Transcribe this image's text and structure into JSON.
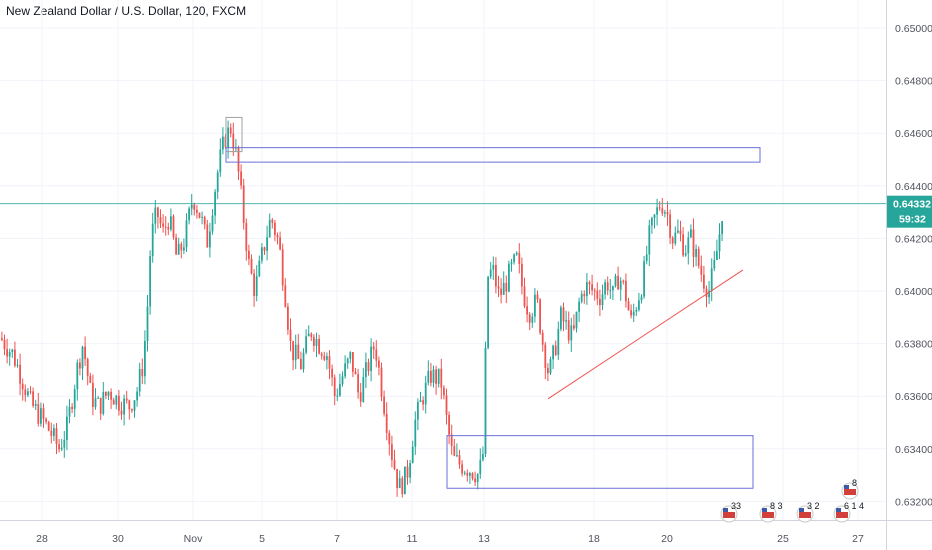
{
  "title": "New Zealand Dollar / U.S. Dollar, 120, FXCM",
  "colors": {
    "up": "#26a69a",
    "down": "#ef5350",
    "current_line": "#26a69a",
    "zone": "#6a6fd8",
    "trendline": "#ef5350",
    "grid": "#f0f3fa",
    "axis_text": "#50535e"
  },
  "chart_data": {
    "type": "candlestick",
    "title": "New Zealand Dollar / U.S. Dollar, 120, FXCM",
    "ylim": [
      0.6305,
      0.651
    ],
    "y_ticks": [
      "0.65000",
      "0.64800",
      "0.64600",
      "0.64400",
      "0.64200",
      "0.64000",
      "0.63800",
      "0.63600",
      "0.63400",
      "0.63200"
    ],
    "x_ticks": [
      "28",
      "30",
      "Nov",
      "5",
      "7",
      "11",
      "13",
      "18",
      "20",
      "25",
      "27"
    ],
    "grid": true,
    "current_price": {
      "value": 0.64332,
      "label": "0.64332",
      "countdown": "59:32"
    },
    "path": [
      [
        0,
        0.6382
      ],
      [
        12,
        0.6376
      ],
      [
        20,
        0.6368
      ],
      [
        30,
        0.6357
      ],
      [
        40,
        0.6352
      ],
      [
        50,
        0.6346
      ],
      [
        58,
        0.634
      ],
      [
        66,
        0.6348
      ],
      [
        76,
        0.637
      ],
      [
        82,
        0.638
      ],
      [
        90,
        0.636
      ],
      [
        98,
        0.6356
      ],
      [
        108,
        0.6362
      ],
      [
        118,
        0.6358
      ],
      [
        128,
        0.6356
      ],
      [
        136,
        0.6362
      ],
      [
        142,
        0.6372
      ],
      [
        146,
        0.639
      ],
      [
        150,
        0.642
      ],
      [
        156,
        0.643
      ],
      [
        162,
        0.6422
      ],
      [
        168,
        0.6428
      ],
      [
        176,
        0.6412
      ],
      [
        184,
        0.642
      ],
      [
        192,
        0.6436
      ],
      [
        200,
        0.6428
      ],
      [
        206,
        0.6418
      ],
      [
        212,
        0.6434
      ],
      [
        218,
        0.6448
      ],
      [
        224,
        0.6458
      ],
      [
        230,
        0.6462
      ],
      [
        236,
        0.645
      ],
      [
        242,
        0.643
      ],
      [
        248,
        0.641
      ],
      [
        254,
        0.64
      ],
      [
        262,
        0.6415
      ],
      [
        270,
        0.6428
      ],
      [
        278,
        0.6418
      ],
      [
        284,
        0.64
      ],
      [
        290,
        0.6378
      ],
      [
        300,
        0.6372
      ],
      [
        310,
        0.6385
      ],
      [
        318,
        0.638
      ],
      [
        326,
        0.6376
      ],
      [
        334,
        0.636
      ],
      [
        342,
        0.6368
      ],
      [
        350,
        0.6375
      ],
      [
        358,
        0.636
      ],
      [
        366,
        0.637
      ],
      [
        374,
        0.638
      ],
      [
        382,
        0.636
      ],
      [
        390,
        0.634
      ],
      [
        398,
        0.6325
      ],
      [
        406,
        0.633
      ],
      [
        414,
        0.635
      ],
      [
        422,
        0.636
      ],
      [
        430,
        0.6368
      ],
      [
        440,
        0.6366
      ],
      [
        446,
        0.635
      ],
      [
        452,
        0.6336
      ],
      [
        460,
        0.6334
      ],
      [
        470,
        0.6332
      ],
      [
        478,
        0.633
      ],
      [
        483,
        0.634
      ],
      [
        486,
        0.6405
      ],
      [
        492,
        0.6408
      ],
      [
        498,
        0.6398
      ],
      [
        504,
        0.6402
      ],
      [
        510,
        0.6408
      ],
      [
        516,
        0.6412
      ],
      [
        522,
        0.64
      ],
      [
        528,
        0.6392
      ],
      [
        536,
        0.6396
      ],
      [
        542,
        0.638
      ],
      [
        548,
        0.6368
      ],
      [
        554,
        0.6378
      ],
      [
        560,
        0.639
      ],
      [
        566,
        0.6386
      ],
      [
        572,
        0.6382
      ],
      [
        578,
        0.6395
      ],
      [
        584,
        0.6402
      ],
      [
        592,
        0.64
      ],
      [
        600,
        0.6398
      ],
      [
        606,
        0.6404
      ],
      [
        612,
        0.6398
      ],
      [
        618,
        0.6406
      ],
      [
        624,
        0.64
      ],
      [
        630,
        0.6388
      ],
      [
        636,
        0.6396
      ],
      [
        642,
        0.6404
      ],
      [
        648,
        0.642
      ],
      [
        654,
        0.6428
      ],
      [
        660,
        0.6434
      ],
      [
        666,
        0.643
      ],
      [
        672,
        0.642
      ],
      [
        678,
        0.6422
      ],
      [
        684,
        0.6416
      ],
      [
        690,
        0.642
      ],
      [
        696,
        0.6412
      ],
      [
        702,
        0.6405
      ],
      [
        708,
        0.64
      ],
      [
        714,
        0.641
      ],
      [
        718,
        0.642
      ],
      [
        722,
        0.6433
      ]
    ],
    "highlight_boxes": [
      {
        "x0": 226,
        "x1": 242,
        "y0": 0.6453,
        "y1": 0.6466,
        "color": "#a0a0a0"
      }
    ],
    "zones": [
      {
        "name": "resistance-zone",
        "x0": 226,
        "x1": 760,
        "y0": 0.6449,
        "y1": 0.64545
      },
      {
        "name": "support-zone",
        "x0": 447,
        "x1": 753,
        "y0": 0.6325,
        "y1": 0.6345
      }
    ],
    "trendline": {
      "x0": 548,
      "y0": 0.6359,
      "x1": 743,
      "y1": 0.6408
    },
    "x_tick_positions": [
      42,
      118,
      193,
      262,
      337,
      412,
      484,
      594,
      667,
      783,
      858
    ],
    "events": [
      {
        "x": 729,
        "label": "33"
      },
      {
        "x": 768,
        "label": "8 3"
      },
      {
        "x": 805,
        "label": "3 2"
      },
      {
        "x": 842,
        "label": "6 1 4"
      },
      {
        "x": 850,
        "label": "8",
        "row": 2
      }
    ]
  }
}
